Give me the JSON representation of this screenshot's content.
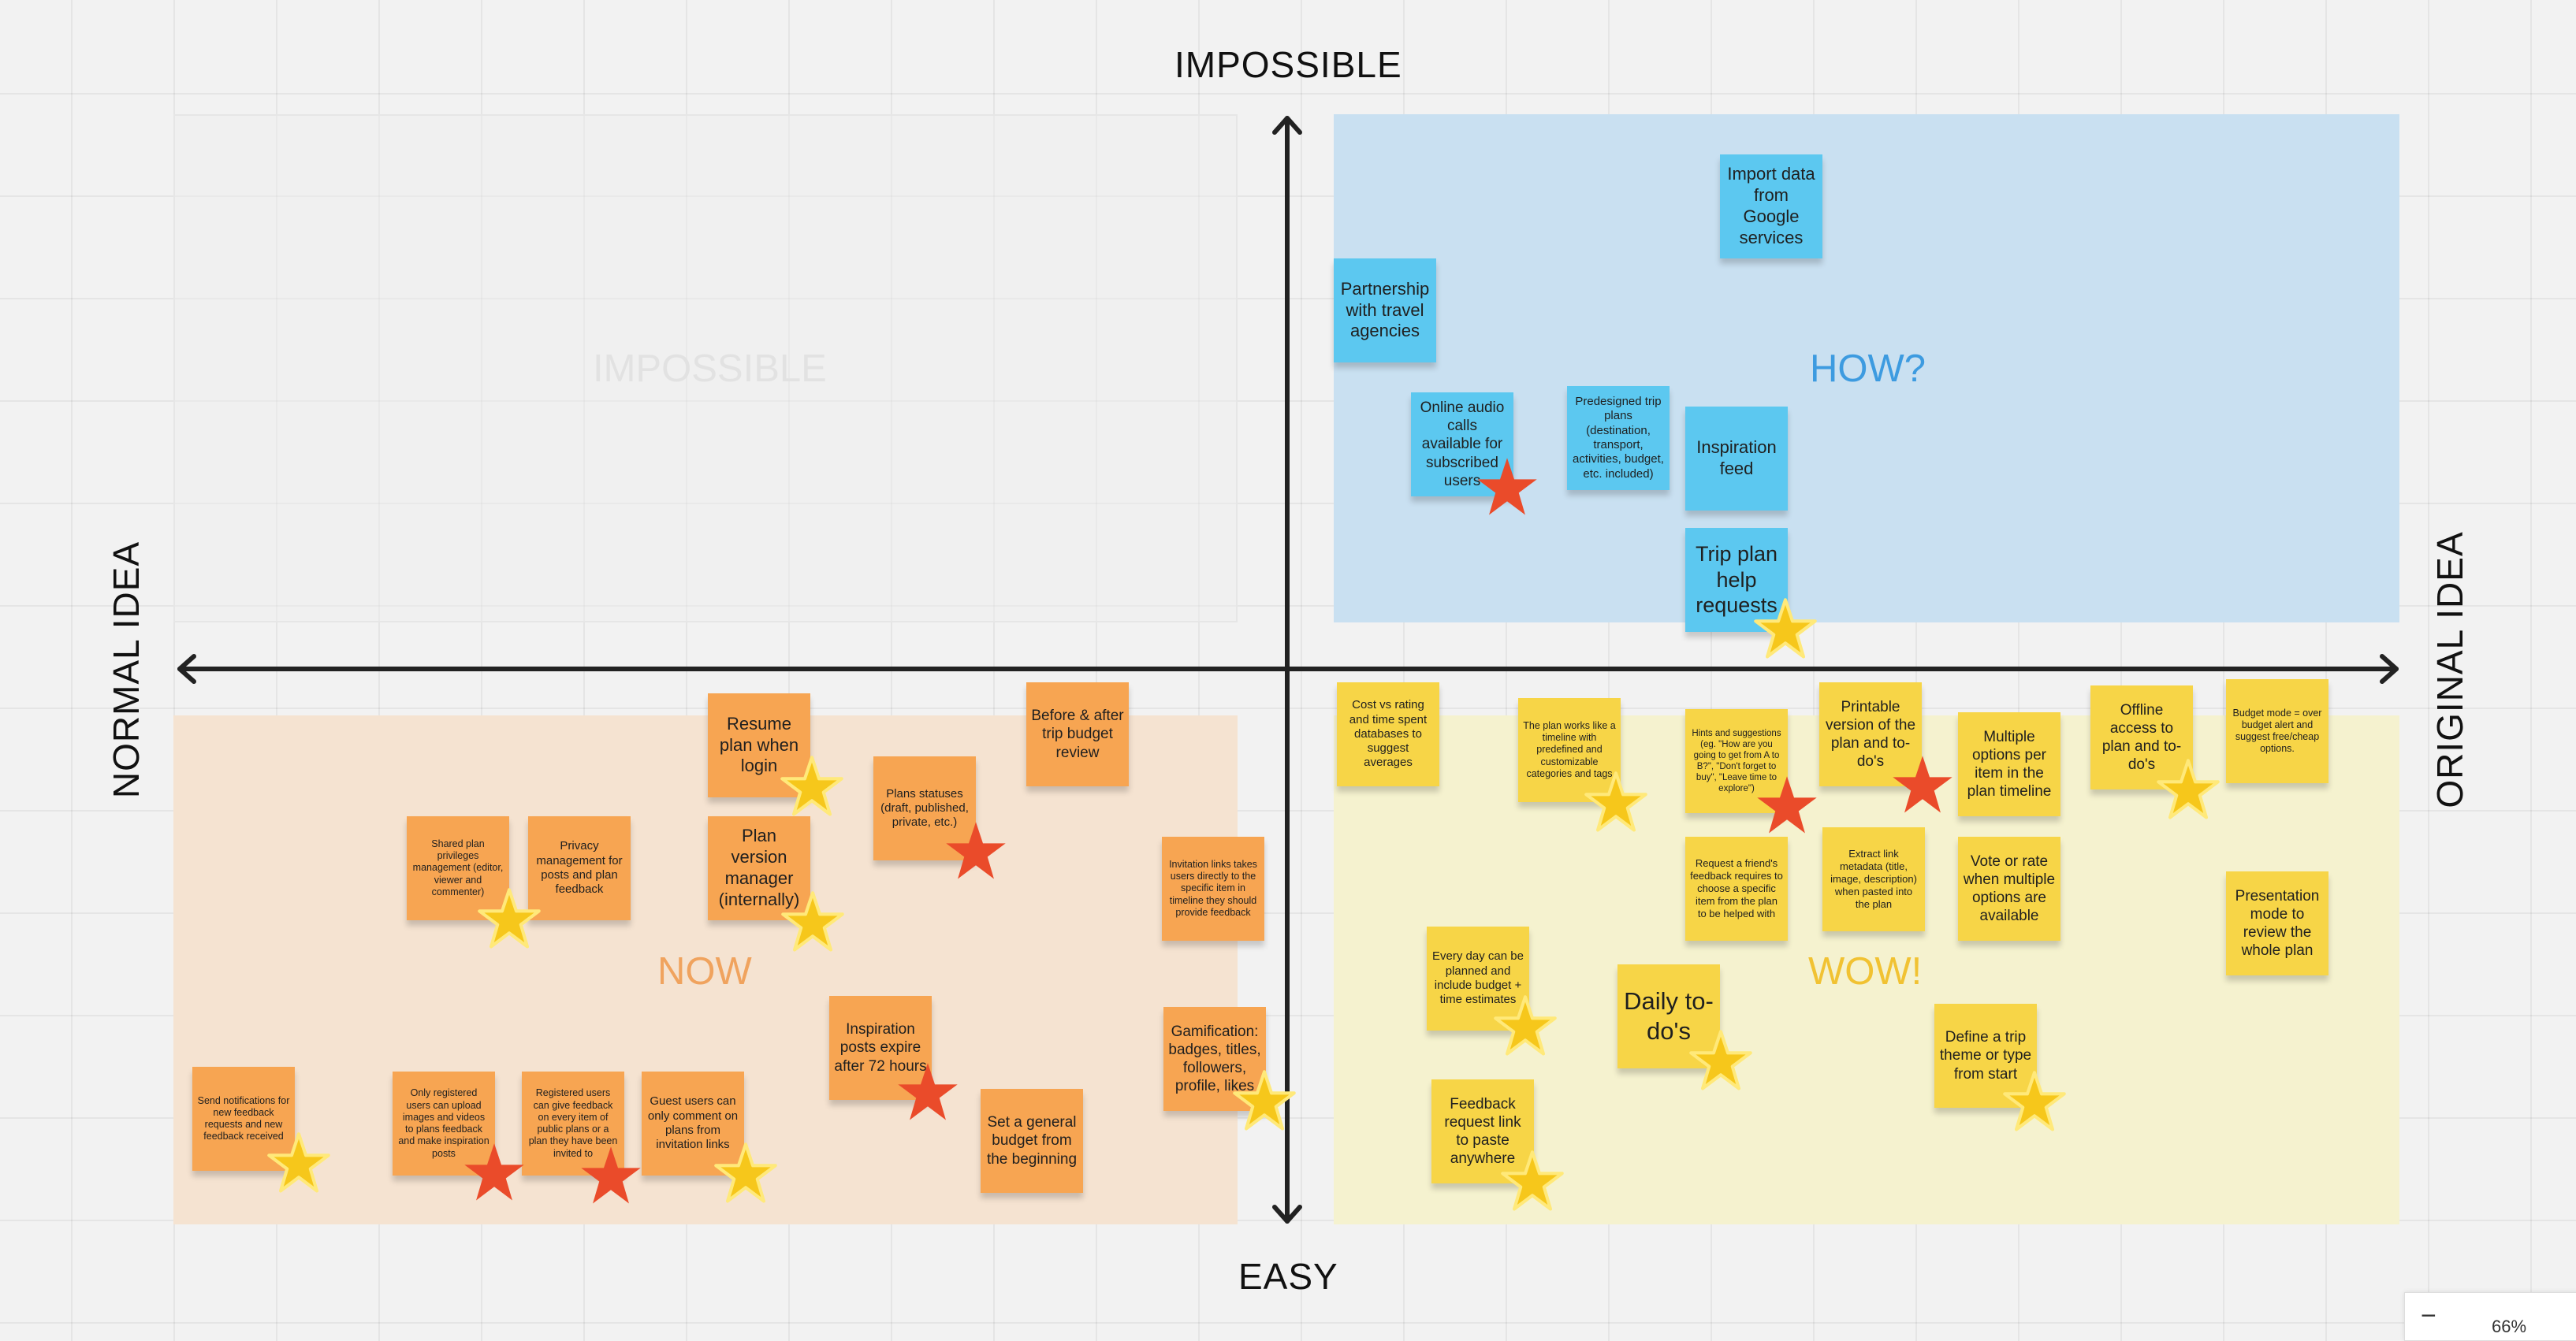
{
  "axes": {
    "top": "IMPOSSIBLE",
    "bottom": "EASY",
    "left": "NORMAL IDEA",
    "right": "ORIGINAL IDEA"
  },
  "quadrants": {
    "impossible": {
      "label": "IMPOSSIBLE",
      "color": "#e4e4e4"
    },
    "how": {
      "label": "HOW?",
      "color": "#3d9be0"
    },
    "now": {
      "label": "NOW",
      "color": "#f0a35e"
    },
    "wow": {
      "label": "WOW!",
      "color": "#f1c232"
    }
  },
  "notes": {
    "import_google": "Import data from Google services",
    "partnership_agencies": "Partnership with travel agencies",
    "online_audio_calls": "Online audio calls available for subscribed users",
    "predesigned_trip_plans": "Predesigned trip plans (destination, transport, activities, budget, etc. included)",
    "inspiration_feed": "Inspiration feed",
    "trip_plan_help": "Trip plan help requests",
    "resume_plan": "Resume plan when login",
    "before_after_budget": "Before & after trip budget review",
    "plans_statuses": "Plans statuses (draft, published, private, etc.)",
    "shared_plan_privileges": "Shared plan privileges management (editor, viewer and commenter)",
    "privacy_management": "Privacy management for posts and plan feedback",
    "plan_version_manager": "Plan version manager (internally)",
    "invitation_links_timeline": "Invitation links takes users directly to the specific item in timeline they should provide feedback",
    "inspiration_posts_expire": "Inspiration posts expire after 72 hours",
    "gamification": "Gamification: badges, titles, followers, profile, likes",
    "send_notifications": "Send notifications for new feedback requests and new feedback received",
    "registered_upload": "Only registered users can upload images and videos to plans feedback and make inspiration posts",
    "registered_feedback": "Registered users can give feedback on every item of public plans or a plan they have been invited to",
    "guest_users_comment": "Guest users can only comment on plans from invitation links",
    "general_budget": "Set a general budget from the beginning",
    "cost_vs_rating": "Cost vs rating and time spent databases to suggest averages",
    "plan_timeline": "The plan works like a timeline with predefined and customizable categories and tags",
    "hints_suggestions": "Hints and suggestions (eg. \"How are you going to get from A to B?\", \"Don't forget to buy\", \"Leave time to explore\")",
    "printable_version": "Printable version of the plan and to-do's",
    "multiple_options": "Multiple options per item in the plan timeline",
    "offline_access": "Offline access to plan and to-do's",
    "budget_mode": "Budget mode = over budget alert and suggest free/cheap options.",
    "request_friend_feedback": "Request a friend's feedback requires to choose a specific item from the plan to be helped with",
    "extract_link_metadata": "Extract link metadata (title, image, description) when pasted into the plan",
    "vote_or_rate": "Vote or rate when multiple options are available",
    "presentation_mode": "Presentation mode to review the whole plan",
    "every_day_planned": "Every day can be planned and include budget + time estimates",
    "daily_todos": "Daily to-do's",
    "define_trip_theme": "Define a trip theme or type from start",
    "feedback_request_link": "Feedback request link to paste anywhere"
  },
  "star_colors": {
    "gold": "#f6c71b",
    "gold_border": "#ffe97a",
    "red": "#ea4b2a"
  },
  "zoom": {
    "minus": "−",
    "level": "66%"
  }
}
